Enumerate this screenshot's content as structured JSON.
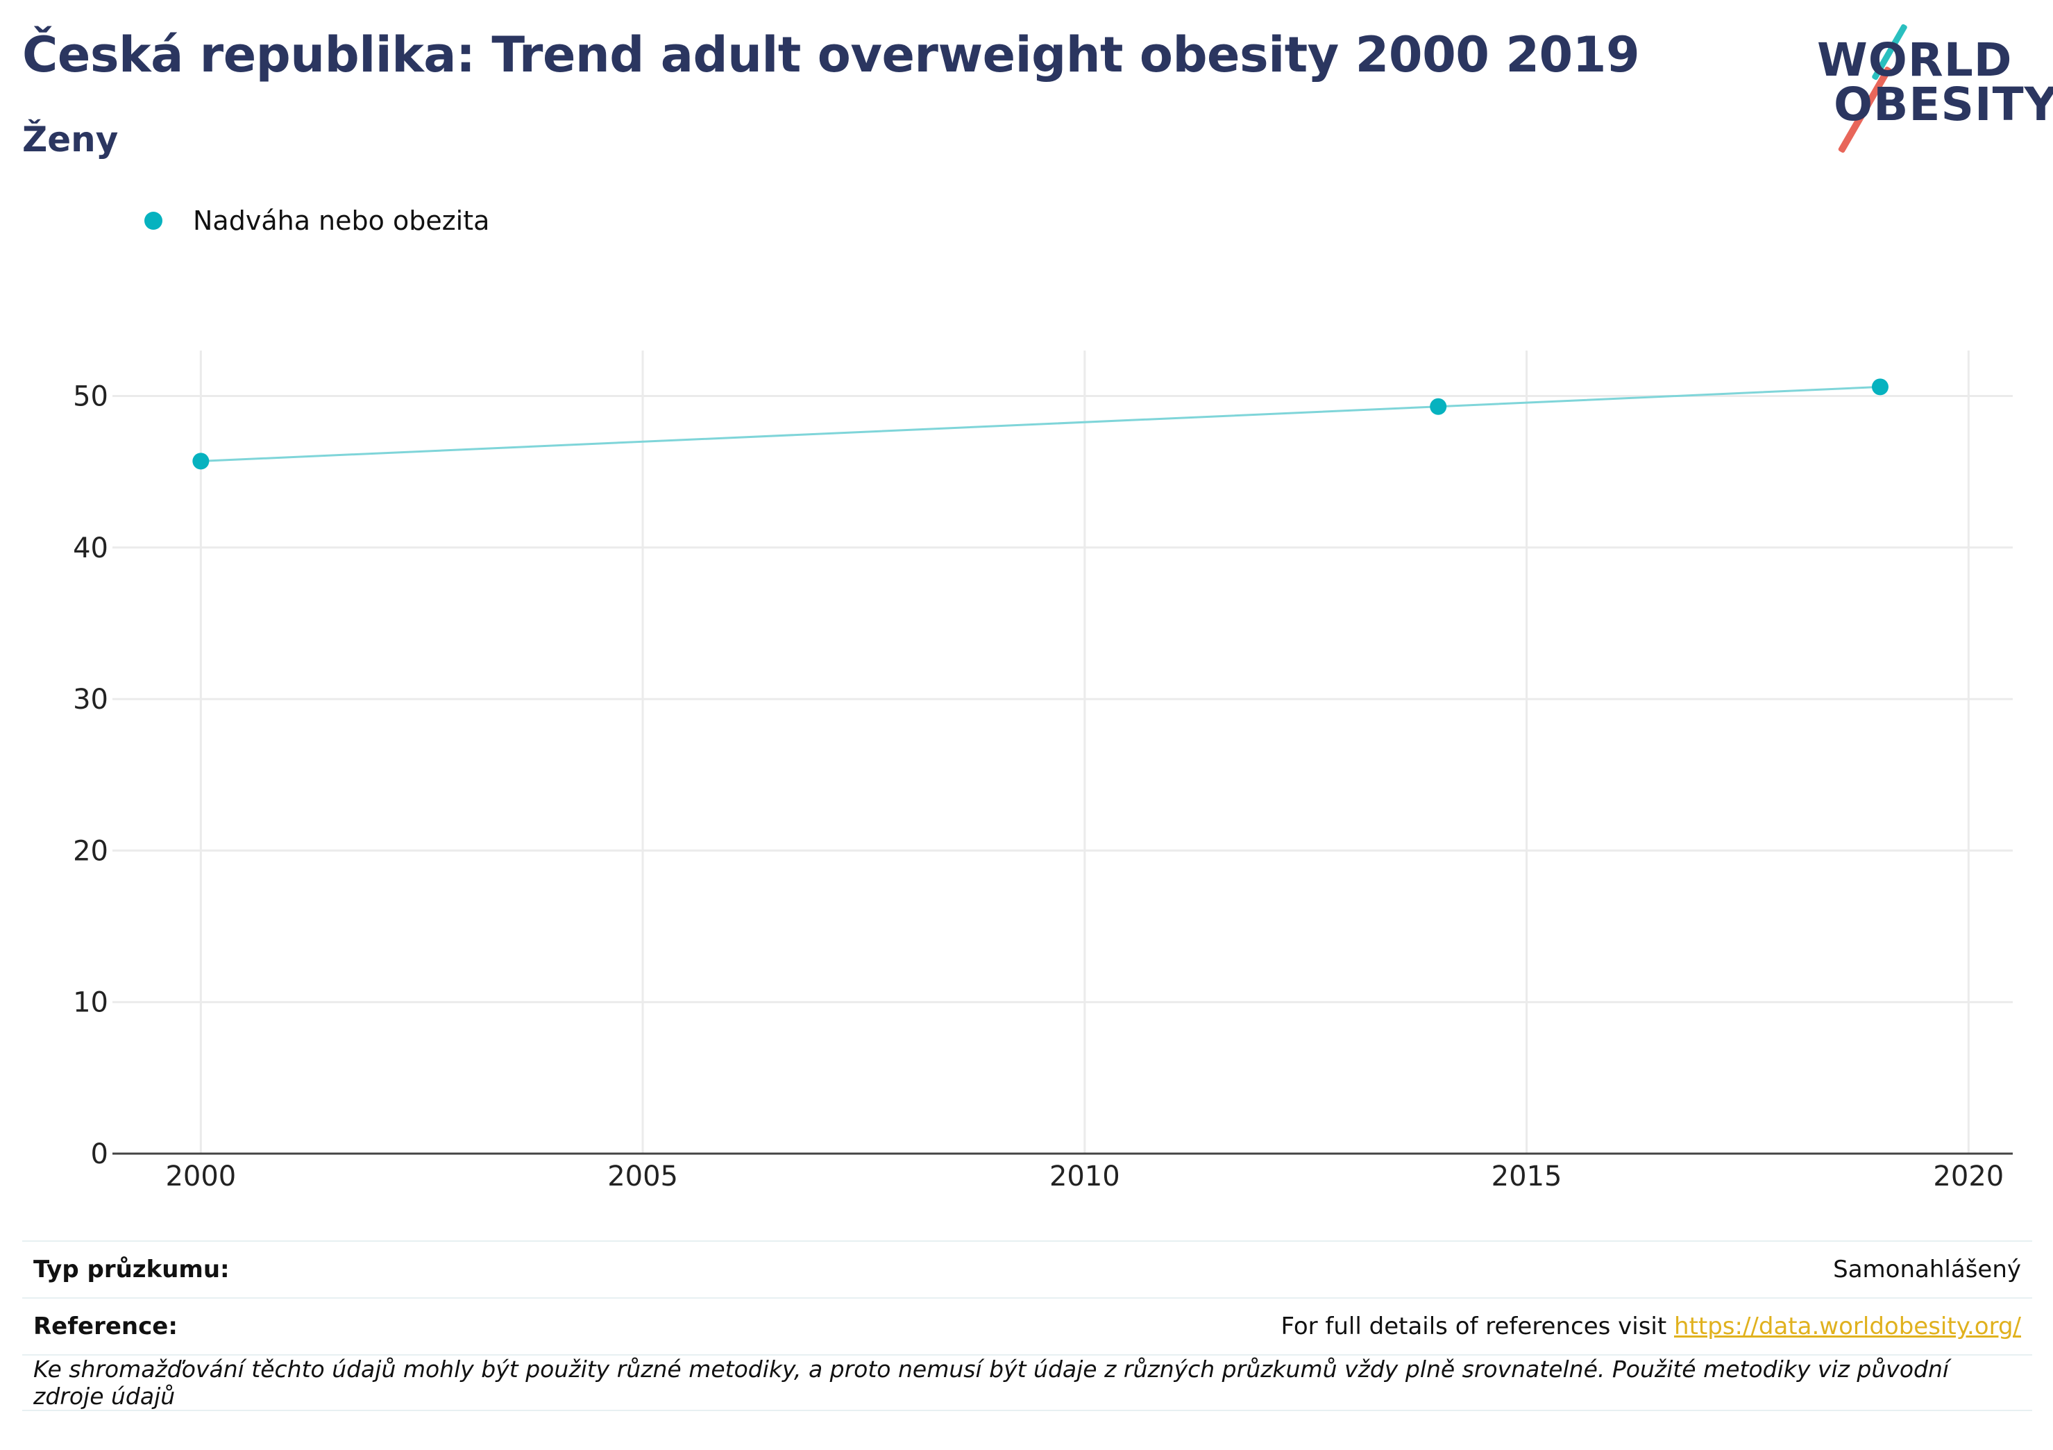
{
  "header": {
    "title": "Česká republika: Trend adult overweight obesity 2000 2019",
    "subtitle": "Ženy"
  },
  "logo": {
    "line1": "WORLD",
    "line2": "OBESITY",
    "icon": "world-obesity-logo"
  },
  "colors": {
    "title": "#2b3660",
    "series": "#06b2bf",
    "series_line": "#7fd5d9",
    "grid": "#ebebeb",
    "link": "#e0b11e",
    "logo_teal": "#2abfbf",
    "logo_red": "#e8665a"
  },
  "chart_data": {
    "type": "line",
    "title": "Česká republika: Trend adult overweight obesity 2000 2019",
    "subtitle": "Ženy",
    "xlabel": "",
    "ylabel": "",
    "xlim": [
      1999,
      2020.5
    ],
    "ylim": [
      0,
      53
    ],
    "x_ticks": [
      2000,
      2005,
      2010,
      2015,
      2020
    ],
    "y_ticks": [
      0,
      10,
      20,
      30,
      40,
      50
    ],
    "grid": true,
    "legend_position": "top-left",
    "series": [
      {
        "name": "Nadváha nebo obezita",
        "x": [
          2000,
          2014,
          2019
        ],
        "values": [
          45.7,
          49.3,
          50.6
        ]
      }
    ]
  },
  "footer": {
    "survey_type_label": "Typ průzkumu:",
    "survey_type_value": "Samonahlášený",
    "reference_label": "Reference:",
    "reference_text": "For full details of references visit ",
    "reference_link": "https://data.worldobesity.org/",
    "note": "Ke shromažďování těchto údajů mohly být použity různé metodiky, a proto nemusí být údaje z různých průzkumů vždy plně srovnatelné. Použité metodiky viz původní zdroje údajů"
  }
}
